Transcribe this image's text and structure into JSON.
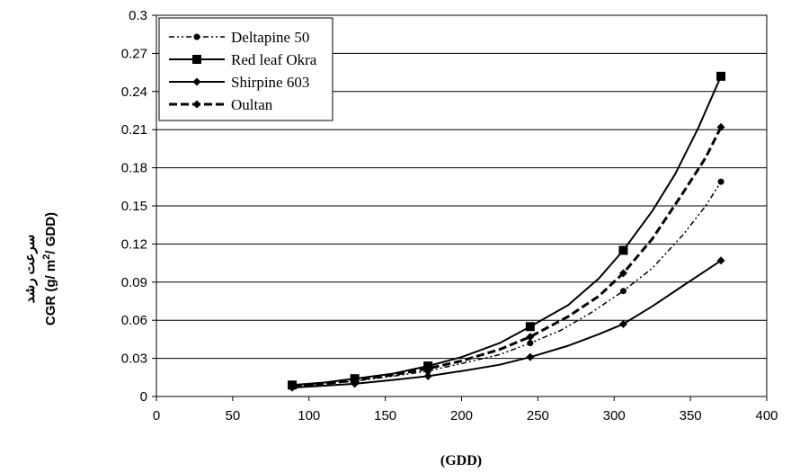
{
  "chart_data": {
    "type": "line",
    "title": "",
    "xlabel": "(GDD)",
    "ylabel_line1": "سرعت رشد",
    "ylabel_line2": "CGR (g/ m",
    "ylabel_sup": "2",
    "ylabel_line2_end": "/ GDD)",
    "xlim": [
      0,
      400
    ],
    "ylim": [
      0,
      0.3
    ],
    "x_ticks": [
      "0",
      "50",
      "100",
      "150",
      "200",
      "250",
      "300",
      "350",
      "400"
    ],
    "y_ticks": [
      "0",
      "0.03",
      "0.06",
      "0.09",
      "0.12",
      "0.15",
      "0.18",
      "0.21",
      "0.24",
      "0.27",
      "0.3"
    ],
    "grid": "horizontal",
    "legend_position": "top-left",
    "series": [
      {
        "name": "Deltapine 50",
        "style": "dash-dot-dot",
        "marker": "circle",
        "points": [
          [
            89,
            0.008
          ],
          [
            130,
            0.012
          ],
          [
            178,
            0.02
          ],
          [
            245,
            0.042
          ],
          [
            306,
            0.083
          ],
          [
            370,
            0.169
          ]
        ],
        "curve": [
          [
            89,
            0.008
          ],
          [
            110,
            0.01
          ],
          [
            130,
            0.012
          ],
          [
            155,
            0.016
          ],
          [
            178,
            0.02
          ],
          [
            200,
            0.026
          ],
          [
            225,
            0.033
          ],
          [
            245,
            0.042
          ],
          [
            265,
            0.052
          ],
          [
            285,
            0.066
          ],
          [
            306,
            0.083
          ],
          [
            325,
            0.101
          ],
          [
            345,
            0.127
          ],
          [
            360,
            0.15
          ],
          [
            370,
            0.169
          ]
        ]
      },
      {
        "name": "Red leaf Okra",
        "style": "solid",
        "marker": "square",
        "points": [
          [
            89,
            0.009
          ],
          [
            130,
            0.014
          ],
          [
            178,
            0.024
          ],
          [
            245,
            0.055
          ],
          [
            306,
            0.115
          ],
          [
            370,
            0.252
          ]
        ],
        "curve": [
          [
            89,
            0.009
          ],
          [
            110,
            0.011
          ],
          [
            130,
            0.014
          ],
          [
            155,
            0.018
          ],
          [
            178,
            0.024
          ],
          [
            200,
            0.031
          ],
          [
            225,
            0.042
          ],
          [
            245,
            0.055
          ],
          [
            270,
            0.072
          ],
          [
            290,
            0.093
          ],
          [
            306,
            0.115
          ],
          [
            325,
            0.146
          ],
          [
            340,
            0.175
          ],
          [
            355,
            0.211
          ],
          [
            370,
            0.252
          ]
        ]
      },
      {
        "name": "Shirpine 603",
        "style": "solid",
        "marker": "diamond",
        "points": [
          [
            89,
            0.007
          ],
          [
            130,
            0.01
          ],
          [
            178,
            0.016
          ],
          [
            245,
            0.031
          ],
          [
            306,
            0.057
          ],
          [
            370,
            0.107
          ]
        ],
        "curve": [
          [
            89,
            0.007
          ],
          [
            110,
            0.0085
          ],
          [
            130,
            0.01
          ],
          [
            155,
            0.013
          ],
          [
            178,
            0.016
          ],
          [
            200,
            0.02
          ],
          [
            225,
            0.025
          ],
          [
            245,
            0.031
          ],
          [
            270,
            0.04
          ],
          [
            290,
            0.049
          ],
          [
            306,
            0.057
          ],
          [
            325,
            0.071
          ],
          [
            345,
            0.087
          ],
          [
            370,
            0.107
          ]
        ]
      },
      {
        "name": "Oultan",
        "style": "dashed",
        "marker": "diamond",
        "points": [
          [
            89,
            0.008
          ],
          [
            130,
            0.013
          ],
          [
            178,
            0.022
          ],
          [
            245,
            0.047
          ],
          [
            306,
            0.097
          ],
          [
            370,
            0.212
          ]
        ],
        "curve": [
          [
            89,
            0.008
          ],
          [
            110,
            0.01
          ],
          [
            130,
            0.013
          ],
          [
            155,
            0.017
          ],
          [
            178,
            0.022
          ],
          [
            200,
            0.028
          ],
          [
            225,
            0.037
          ],
          [
            245,
            0.047
          ],
          [
            270,
            0.063
          ],
          [
            290,
            0.079
          ],
          [
            306,
            0.097
          ],
          [
            325,
            0.124
          ],
          [
            345,
            0.16
          ],
          [
            360,
            0.188
          ],
          [
            370,
            0.212
          ]
        ]
      }
    ]
  }
}
